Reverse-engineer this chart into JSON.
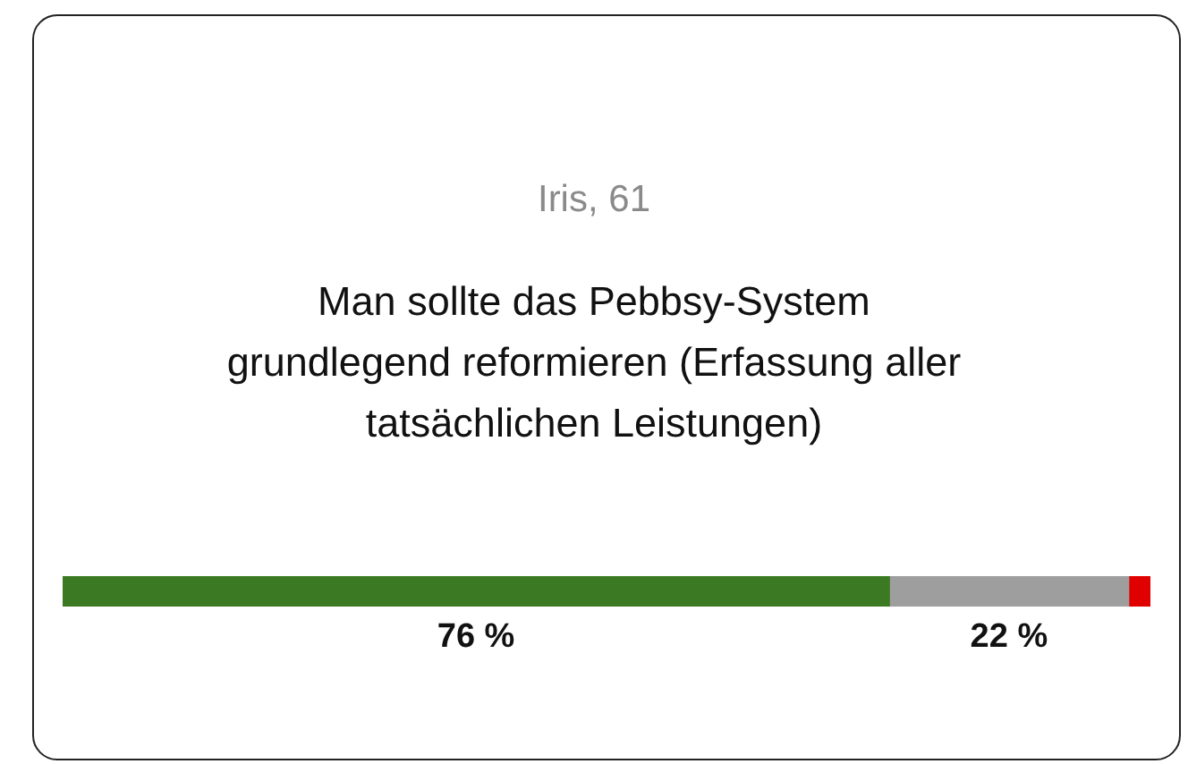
{
  "chart_data": {
    "type": "bar",
    "orientation": "horizontal",
    "stacked": true,
    "subtitle": "Iris, 61",
    "title": "Man sollte das Pebbsy-System grundlegend reformieren (Erfassung aller tatsächlichen Leistungen)",
    "categories": [
      null
    ],
    "xlim": [
      0,
      100
    ],
    "tick_labels": false,
    "grid": false,
    "legend": false,
    "series": [
      {
        "color": "#3b7a23",
        "values": [
          76
        ],
        "value_labels": [
          "76 %"
        ]
      },
      {
        "color": "#9e9e9e",
        "values": [
          22
        ],
        "value_labels": [
          "22 %"
        ]
      },
      {
        "color": "#e00000",
        "values": [
          2
        ],
        "value_labels": [
          null
        ]
      }
    ]
  }
}
